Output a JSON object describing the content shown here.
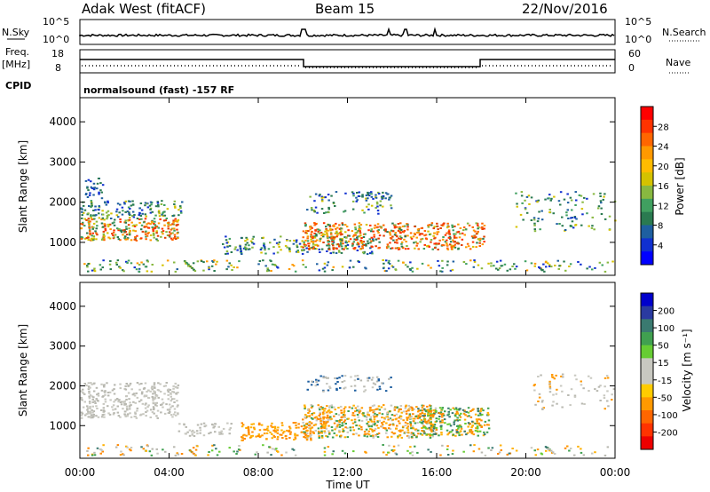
{
  "header": {
    "radar": "Adak West (fitACF)",
    "beam": "Beam 15",
    "date": "22/Nov/2016"
  },
  "strips": {
    "nsky_label": "N.Sky",
    "nsearch_label": "N.Search",
    "nsky_ticks": [
      "10^5",
      "10^0"
    ],
    "nsearch_ticks": [
      "10^5",
      "10^0"
    ],
    "freq_label_1": "Freq.",
    "freq_label_2": "[MHz]",
    "freq_ticks": [
      "18",
      "8"
    ],
    "nave_label": "Nave",
    "nave_ticks": [
      "60",
      "0"
    ],
    "cpid_label": "CPID",
    "cpid_text": "normalsound (fast) -157 RF"
  },
  "chart_data": [
    {
      "type": "heatmap",
      "panel": "power",
      "ylabel": "Slant Range [km]",
      "ylim": [
        180,
        4600
      ],
      "yticks": [
        "1000",
        "2000",
        "3000",
        "4000"
      ],
      "xlim": [
        "00:00",
        "24:00"
      ],
      "colorbar_label": "Power [dB]",
      "colorbar_ticks": [
        "28",
        "24",
        "20",
        "16",
        "12",
        "8",
        "4"
      ],
      "colorbar_colors": [
        "#ff0000",
        "#ff3300",
        "#ff6600",
        "#ff9900",
        "#ffbb00",
        "#d4c200",
        "#88b840",
        "#40a060",
        "#2a7a50",
        "#1e5fa0",
        "#1030d0",
        "#0000ff"
      ]
    },
    {
      "type": "heatmap",
      "panel": "velocity",
      "ylabel": "Slant Range [km]",
      "ylim": [
        180,
        4600
      ],
      "yticks": [
        "1000",
        "2000",
        "3000",
        "4000"
      ],
      "xlim": [
        "00:00",
        "24:00"
      ],
      "xlabel": "Time UT",
      "xticks": [
        "00:00",
        "04:00",
        "08:00",
        "12:00",
        "16:00",
        "20:00",
        "00:00"
      ],
      "colorbar_label": "Velocity [m s⁻¹]",
      "colorbar_ticks": [
        "200",
        "100",
        "50",
        "15",
        "-15",
        "-50",
        "-100",
        "-200"
      ],
      "colorbar_colors": [
        "#0000cc",
        "#2a3aa0",
        "#3a7a70",
        "#40a050",
        "#66cc33",
        "#c8c8c0",
        "#c8c8c0",
        "#ffcc00",
        "#ff9900",
        "#ff6600",
        "#ff3300",
        "#ee0000"
      ]
    }
  ]
}
